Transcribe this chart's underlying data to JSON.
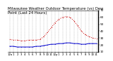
{
  "title": "Milwaukee Weather Outdoor Temperature (vs) Dew Point (Last 24 Hours)",
  "title_fontsize": 3.8,
  "background_color": "#ffffff",
  "grid_color": "#aaaaaa",
  "temp_color": "#cc0000",
  "dew_color": "#0000cc",
  "temp_values": [
    28,
    27,
    27,
    26,
    26,
    27,
    27,
    27,
    28,
    32,
    38,
    45,
    52,
    57,
    60,
    61,
    60,
    55,
    48,
    40,
    35,
    32,
    30,
    29
  ],
  "dew_values": [
    18,
    18,
    17,
    17,
    17,
    17,
    17,
    18,
    18,
    19,
    20,
    21,
    21,
    22,
    22,
    23,
    23,
    22,
    22,
    21,
    21,
    22,
    22,
    22
  ],
  "x_labels": [
    "12a",
    "1",
    "2",
    "3",
    "4",
    "5",
    "6",
    "7",
    "8",
    "9",
    "10",
    "11",
    "12p",
    "1",
    "2",
    "3",
    "4",
    "5",
    "6",
    "7",
    "8",
    "9",
    "10",
    "11"
  ],
  "ylim": [
    10,
    70
  ],
  "yticks": [
    10,
    20,
    30,
    40,
    50,
    60,
    70
  ],
  "ylabel_fontsize": 3.0,
  "xlabel_fontsize": 2.8,
  "linewidth": 0.7,
  "marker": ".",
  "markersize": 1.2,
  "temp_linestyle": "dotted",
  "dew_linestyle": "solid"
}
